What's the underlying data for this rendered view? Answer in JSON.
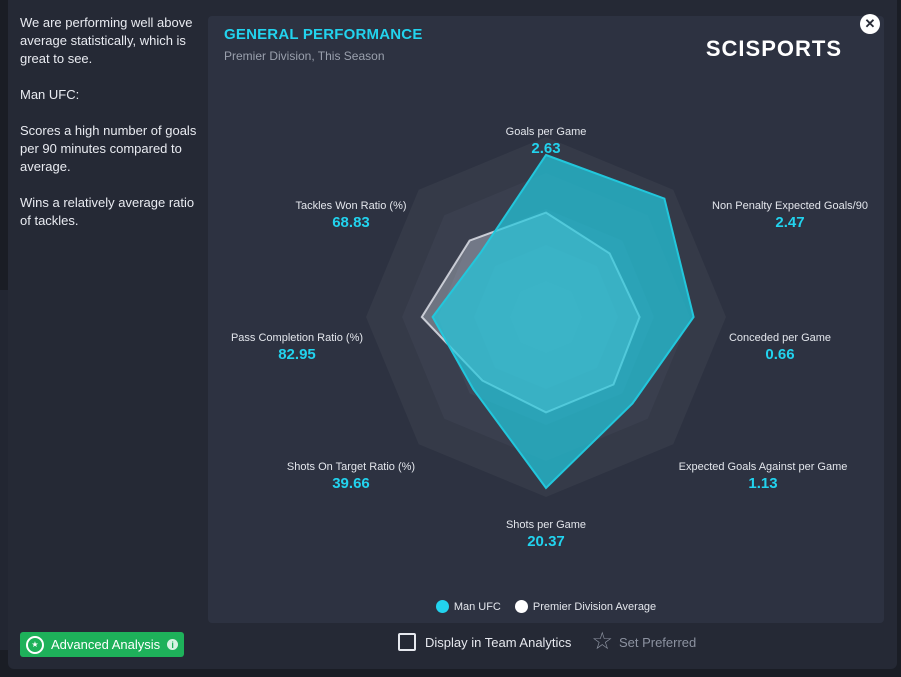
{
  "sidebar": {
    "paragraphs": [
      "We are performing well above average statistically, which is great to see.",
      "Man UFC:",
      "Scores a high number of goals per 90 minutes compared to average.",
      "Wins a relatively average ratio of tackles."
    ]
  },
  "panel": {
    "title": "GENERAL PERFORMANCE",
    "subtitle": "Premier Division, This Season",
    "logo": "SCISPORTS"
  },
  "close_icon": "close-icon",
  "chart_data": {
    "type": "radar",
    "rings": 5,
    "axes": [
      {
        "label": "Goals per Game",
        "value": "2.63",
        "team": 0.9,
        "avg": 0.58
      },
      {
        "label": "Non Penalty Expected Goals/90",
        "value": "2.47",
        "team": 0.93,
        "avg": 0.5
      },
      {
        "label": "Conceded per Game",
        "value": "0.66",
        "team": 0.82,
        "avg": 0.52
      },
      {
        "label": "Expected Goals Against per Game",
        "value": "1.13",
        "team": 0.68,
        "avg": 0.53
      },
      {
        "label": "Shots per Game",
        "value": "20.37",
        "team": 0.95,
        "avg": 0.53
      },
      {
        "label": "Shots On Target Ratio (%)",
        "value": "39.66",
        "team": 0.57,
        "avg": 0.5
      },
      {
        "label": "Pass Completion Ratio (%)",
        "value": "82.95",
        "team": 0.63,
        "avg": 0.69
      },
      {
        "label": "Tackles Won Ratio (%)",
        "value": "68.83",
        "team": 0.51,
        "avg": 0.6
      }
    ],
    "series": [
      {
        "name": "Man UFC",
        "color": "#22c7dc"
      },
      {
        "name": "Premier Division Average",
        "color": "#ffffff"
      }
    ],
    "legend_position": "bottom"
  },
  "footer": {
    "advanced_analysis_label": "Advanced Analysis",
    "advanced_icon": "star-badge-icon",
    "info_icon": "info-icon",
    "display_label": "Display in Team Analytics",
    "display_checked": false,
    "preferred_label": "Set Preferred",
    "preferred_icon": "star-outline-icon"
  }
}
